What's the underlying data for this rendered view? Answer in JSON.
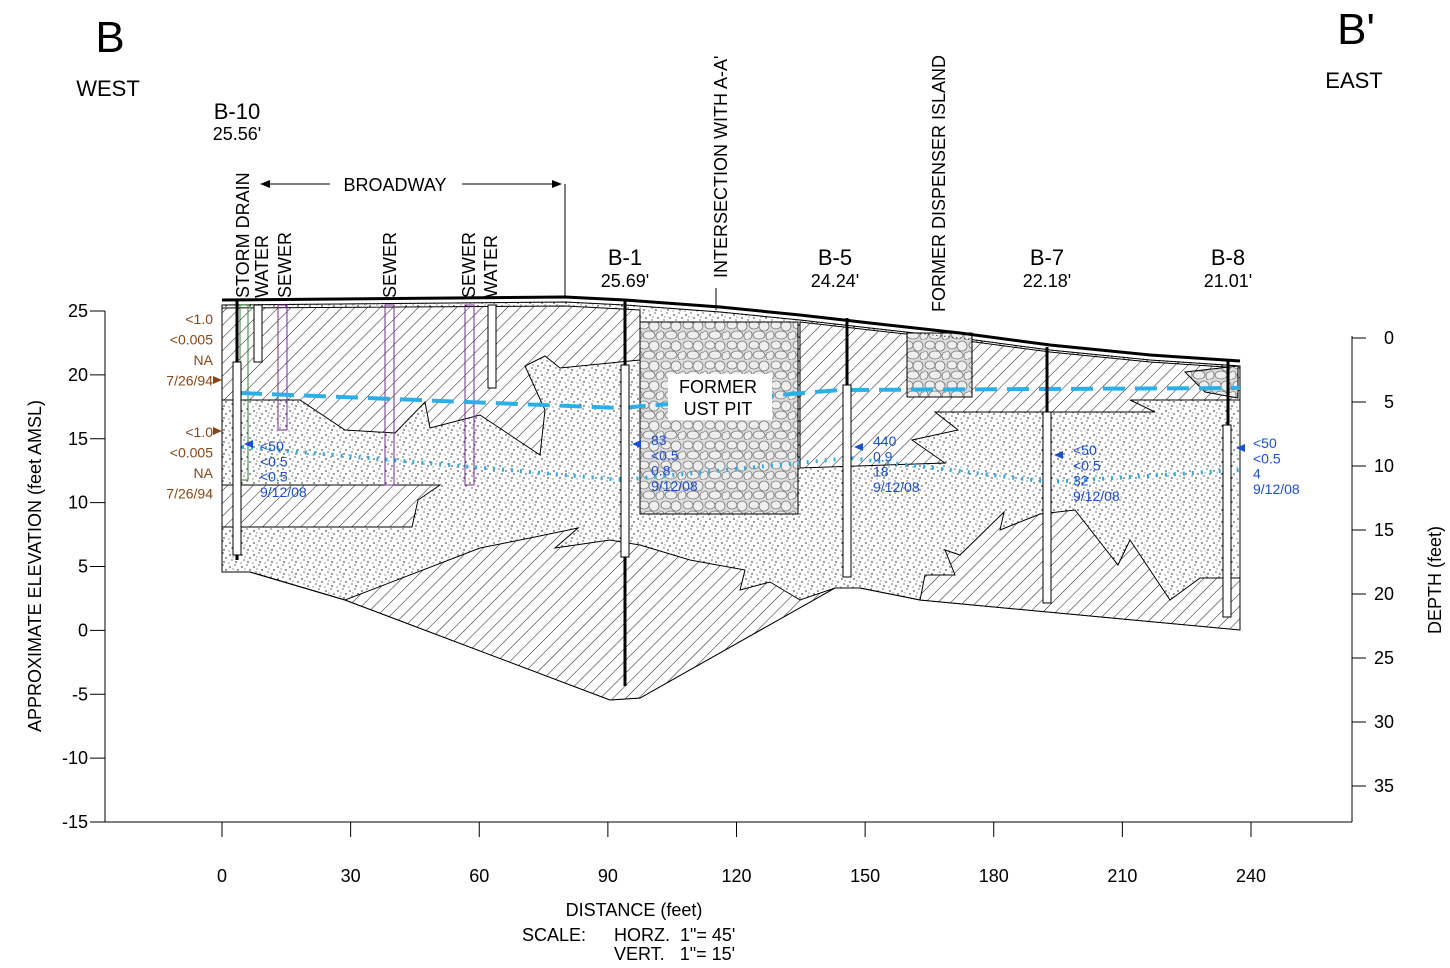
{
  "header": {
    "left_label": "B",
    "left_direction": "WEST",
    "right_label": "B'",
    "right_direction": "EAST"
  },
  "borings": [
    {
      "name": "B-10",
      "elevation": "25.56'"
    },
    {
      "name": "B-1",
      "elevation": "25.69'"
    },
    {
      "name": "B-5",
      "elevation": "24.24'"
    },
    {
      "name": "B-7",
      "elevation": "22.18'"
    },
    {
      "name": "B-8",
      "elevation": "21.01'"
    }
  ],
  "utilities": [
    "STORM DRAIN",
    "WATER",
    "SEWER",
    "SEWER",
    "SEWER",
    "WATER"
  ],
  "annotations": {
    "broadway": "BROADWAY",
    "intersection": "INTERSECTION WITH A-A'",
    "dispenser": "FORMER DISPENSER ISLAND",
    "ust_pit_line1": "FORMER",
    "ust_pit_line2": "UST PIT"
  },
  "samples": [
    {
      "lines": [
        "<1.0",
        "<0.005",
        "NA",
        "7/26/94"
      ]
    },
    {
      "lines": [
        "<1.0",
        "<0.005",
        "NA",
        "7/26/94"
      ]
    },
    {
      "lines": [
        "<50",
        "<0.5",
        "<0.5",
        "9/12/08"
      ]
    },
    {
      "lines": [
        "83",
        "<0.5",
        "0.8",
        "9/12/08"
      ]
    },
    {
      "lines": [
        "440",
        "0.9",
        "18",
        "9/12/08"
      ]
    },
    {
      "lines": [
        "<50",
        "<0.5",
        "32",
        "9/12/08"
      ]
    },
    {
      "lines": [
        "<50",
        "<0.5",
        "4",
        "9/12/08"
      ]
    }
  ],
  "axes": {
    "elevation": {
      "label": "APPROXIMATE ELEVATION (feet AMSL)",
      "ticks": [
        25,
        20,
        15,
        10,
        5,
        0,
        -5,
        -10,
        -15
      ]
    },
    "depth": {
      "label": "DEPTH (feet)",
      "ticks": [
        0,
        5,
        10,
        15,
        20,
        25,
        30,
        35
      ]
    },
    "distance": {
      "label": "DISTANCE (feet)",
      "ticks": [
        0,
        30,
        60,
        90,
        120,
        150,
        180,
        210,
        240
      ]
    }
  },
  "scale": {
    "label": "SCALE:",
    "horizontal": "HORZ.  1\"= 45'",
    "vertical": "VERT.   1\"= 15'"
  }
}
